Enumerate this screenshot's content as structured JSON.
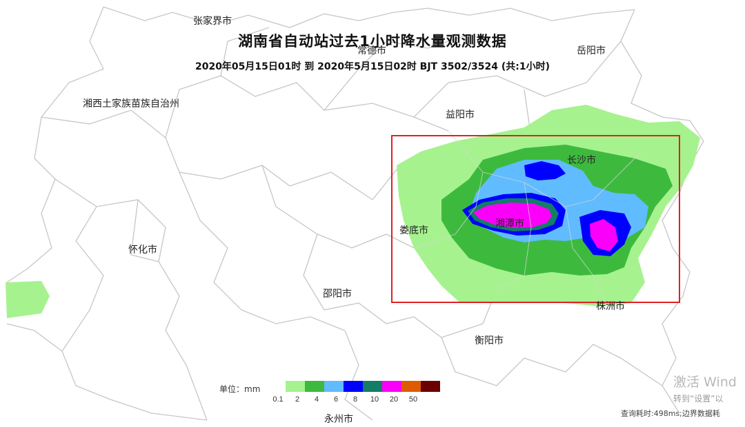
{
  "map": {
    "title": "湖南省自动站过去1小时降水量观测数据",
    "subtitle": "2020年05月15日01时 到 2020年5月15日02时 BJT 3502/3524 (共:1小时)",
    "cities": [
      {
        "name": "张家界市",
        "key": "zhangjiajie"
      },
      {
        "name": "常德市",
        "key": "changde"
      },
      {
        "name": "岳阳市",
        "key": "yueyang"
      },
      {
        "name": "湘西土家族苗族自治州",
        "key": "xiangxi"
      },
      {
        "name": "益阳市",
        "key": "yiyang"
      },
      {
        "name": "长沙市",
        "key": "changsha"
      },
      {
        "name": "湘潭市",
        "key": "xiangtan"
      },
      {
        "name": "娄底市",
        "key": "loudi"
      },
      {
        "name": "怀化市",
        "key": "huaihua"
      },
      {
        "name": "邵阳市",
        "key": "shaoyang"
      },
      {
        "name": "株洲市",
        "key": "zhuzhou"
      },
      {
        "name": "衡阳市",
        "key": "hengyang"
      },
      {
        "name": "永州市",
        "key": "yongzhou"
      }
    ]
  },
  "legend": {
    "unit_label": "单位：mm",
    "ticks": [
      "0.1",
      "2",
      "4",
      "6",
      "8",
      "10",
      "20",
      "50"
    ],
    "colors": [
      "#a6f28f",
      "#3dba3d",
      "#61bbff",
      "#0000fe",
      "#137d66",
      "#fa00fa",
      "#e05a00",
      "#6b0000"
    ]
  },
  "watermark": {
    "line1": "激活 Wind",
    "line2": "转到“设置”以"
  },
  "footer": {
    "text": "查询耗时:498ms;边界数据耗"
  },
  "colors": {
    "highlight_box": "#e02020",
    "boundary": "#c8c8c8"
  }
}
